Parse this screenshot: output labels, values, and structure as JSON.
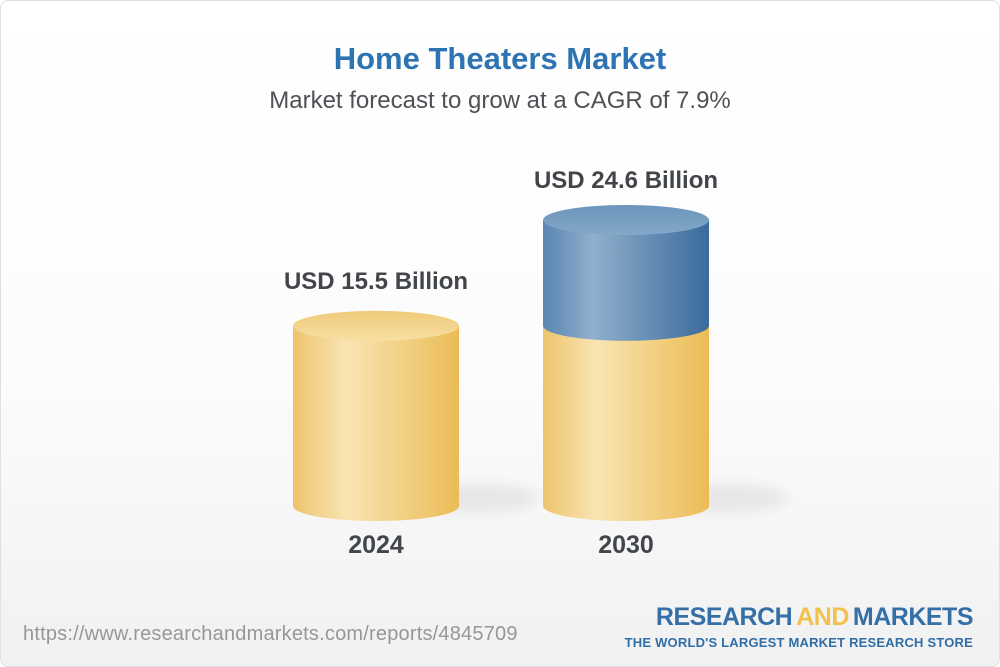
{
  "header": {
    "title": "Home Theaters Market",
    "subtitle": "Market forecast to grow at a CAGR of 7.9%"
  },
  "chart_data": {
    "type": "bar",
    "variant": "3d-cylinder",
    "title": "Home Theaters Market",
    "subtitle": "Market forecast to grow at a CAGR of 7.9%",
    "cagr_percent": 7.9,
    "unit": "USD Billion",
    "categories": [
      "2024",
      "2030"
    ],
    "values": [
      15.5,
      24.6
    ],
    "value_labels": [
      "USD 15.5 Billion",
      "USD 24.6 Billion"
    ],
    "ylim": [
      0,
      24.6
    ],
    "grid": false,
    "legend": false,
    "colors": {
      "base_bar_yellow": "#F2CB79",
      "growth_segment_blue": "#5E8BB5",
      "label_text": "#42464A",
      "title_blue": "#2E74B2"
    }
  },
  "footer": {
    "source_url": "https://www.researchandmarkets.com/reports/4845709",
    "logo": {
      "word1": "RESEARCH",
      "word2": "AND",
      "word3": "MARKETS",
      "tagline": "THE WORLD'S LARGEST MARKET RESEARCH STORE",
      "blue": "#346FA8",
      "gold": "#F2C14B"
    }
  }
}
